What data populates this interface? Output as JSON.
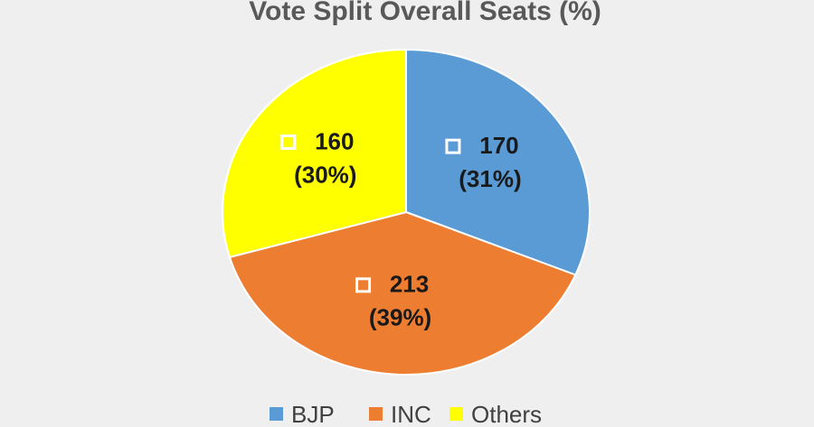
{
  "chart_data": {
    "type": "pie",
    "title": "Vote Split Overall Seats (%)",
    "categories": [
      "BJP",
      "INC",
      "Others"
    ],
    "values": [
      170,
      213,
      160
    ],
    "percent_labels": [
      "(31%)",
      "(39%)",
      "(30%)"
    ],
    "colors": [
      "#5b9bd5",
      "#ed7d31",
      "#ffff00"
    ],
    "legend": "bottom"
  }
}
